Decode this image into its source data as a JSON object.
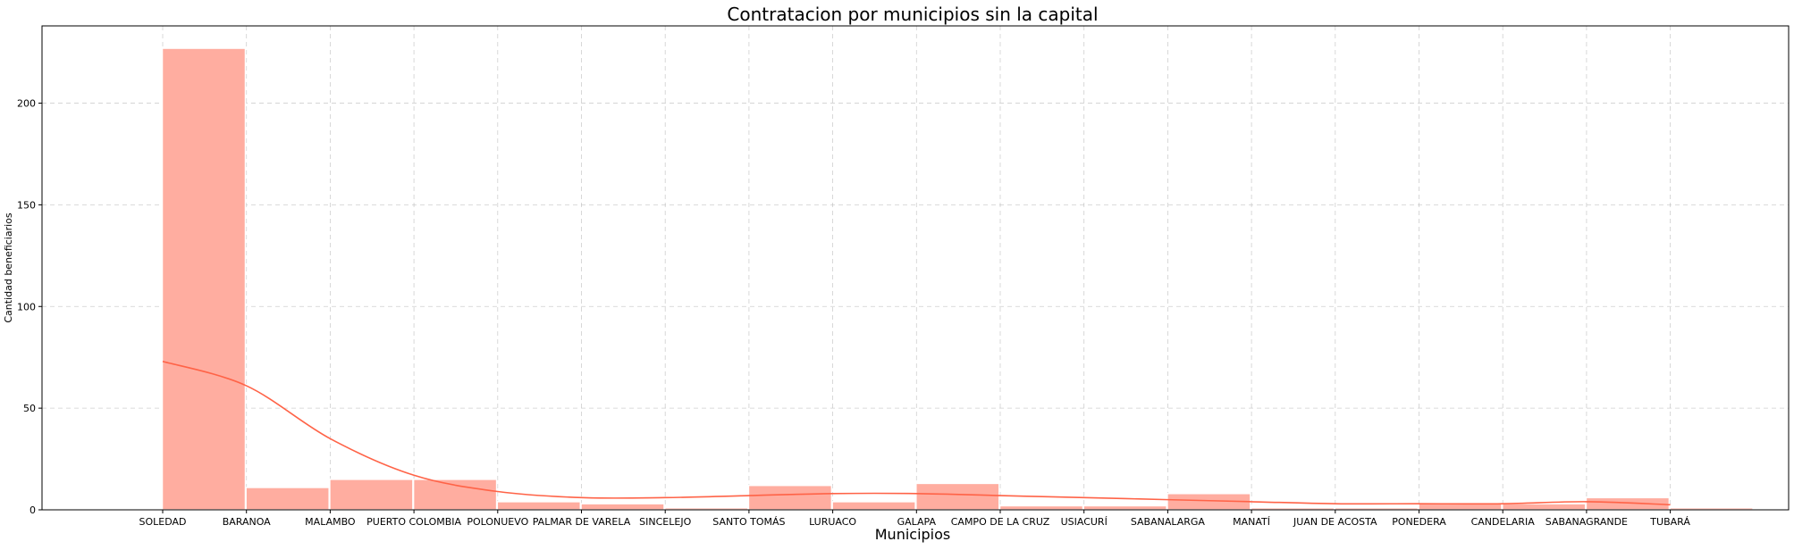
{
  "chart_data": {
    "type": "bar",
    "title": "Contratacion por municipios sin la capital",
    "xlabel": "Municipios",
    "ylabel": "Cantidad beneficiarios",
    "ylim": [
      0,
      238
    ],
    "yticks": [
      0,
      50,
      100,
      150,
      200
    ],
    "grid": true,
    "categories": [
      "SOLEDAD",
      "BARANOA",
      "MALAMBO",
      "PUERTO COLOMBIA",
      "POLONUEVO",
      "PALMAR DE VARELA",
      "SINCELEJO",
      "SANTO TOMÁS",
      "LURUACO",
      "GALAPA",
      "CAMPO DE LA CRUZ",
      "USIACURÍ",
      "SABANALARGA",
      "MANATÍ",
      "JUAN DE ACOSTA",
      "PONEDERA",
      "CANDELARIA",
      "SABANAGRANDE",
      "TUBARÁ"
    ],
    "values": [
      227,
      11,
      15,
      15,
      4,
      3,
      1,
      12,
      4,
      13,
      2,
      2,
      8,
      1,
      1,
      3,
      3,
      6,
      1
    ],
    "colors": {
      "bar": "#ffada0",
      "kde": "#ff6347"
    },
    "series": [
      {
        "name": "kde",
        "x_index": [
          0,
          1,
          2,
          3,
          4,
          5,
          6,
          7,
          8,
          9,
          10,
          11,
          12,
          13,
          14,
          15,
          16,
          17,
          18
        ],
        "values": [
          73,
          61,
          35,
          17,
          9,
          6,
          6,
          7,
          8,
          8,
          7,
          6,
          5,
          4,
          3,
          3,
          3,
          4,
          2.5
        ]
      }
    ]
  }
}
